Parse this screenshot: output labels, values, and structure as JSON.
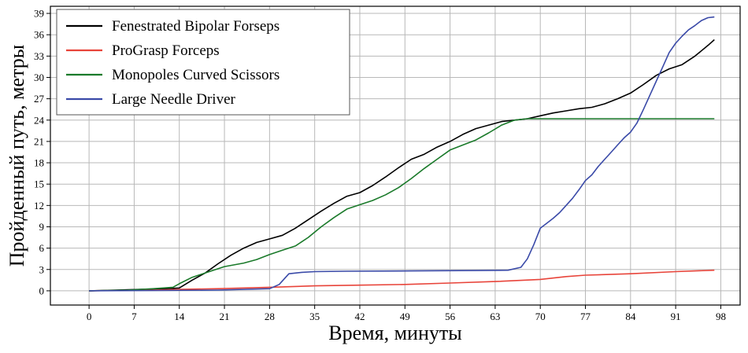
{
  "chart_data": {
    "type": "line",
    "xlabel": "Время, минуты",
    "ylabel": "Пройденный путь, метры",
    "xlim": [
      -6,
      101
    ],
    "ylim": [
      -2,
      40
    ],
    "xticks": [
      0,
      7,
      14,
      21,
      28,
      35,
      42,
      49,
      56,
      63,
      70,
      77,
      84,
      91,
      98
    ],
    "yticks": [
      0,
      3,
      6,
      9,
      12,
      15,
      18,
      21,
      24,
      27,
      30,
      33,
      36,
      39
    ],
    "grid": true,
    "legend_position": "top-left",
    "series": [
      {
        "name": "Fenestrated Bipolar Forseps",
        "color": "#000000",
        "x": [
          0,
          4,
          8,
          12,
          14,
          16,
          18,
          20,
          22,
          24,
          26,
          28,
          30,
          32,
          34,
          36,
          38,
          40,
          42,
          44,
          46,
          48,
          50,
          52,
          54,
          56,
          58,
          60,
          62,
          64,
          66,
          68,
          70,
          72,
          74,
          76,
          78,
          80,
          82,
          84,
          86,
          88,
          90,
          92,
          94,
          96,
          97
        ],
        "y": [
          0,
          0.1,
          0.2,
          0.3,
          0.4,
          1.5,
          2.5,
          3.8,
          5.0,
          6.0,
          6.8,
          7.3,
          7.8,
          8.8,
          10.0,
          11.2,
          12.3,
          13.3,
          13.8,
          14.8,
          16.0,
          17.3,
          18.5,
          19.2,
          20.2,
          21.0,
          22.0,
          22.8,
          23.3,
          23.8,
          24.0,
          24.2,
          24.6,
          25.0,
          25.3,
          25.6,
          25.8,
          26.3,
          27.0,
          27.8,
          29.0,
          30.3,
          31.2,
          31.8,
          33.0,
          34.5,
          35.3
        ]
      },
      {
        "name": "ProGrasp Forceps",
        "color": "#e8443a",
        "x": [
          0,
          10,
          14,
          20,
          28,
          35,
          42,
          49,
          56,
          63,
          70,
          74,
          77,
          84,
          91,
          97
        ],
        "y": [
          0,
          0.1,
          0.2,
          0.3,
          0.5,
          0.7,
          0.8,
          0.9,
          1.1,
          1.3,
          1.6,
          2.0,
          2.2,
          2.4,
          2.7,
          2.9
        ]
      },
      {
        "name": "Monopoles Curved Scissors",
        "color": "#1a7a2a",
        "x": [
          0,
          6,
          10,
          13,
          14,
          16,
          18,
          21,
          24,
          26,
          28,
          30,
          32,
          34,
          36,
          38,
          40,
          42,
          44,
          46,
          48,
          50,
          52,
          54,
          56,
          58,
          60,
          62,
          64,
          66,
          68,
          70,
          80,
          90,
          97
        ],
        "y": [
          0,
          0.1,
          0.3,
          0.5,
          1.0,
          1.9,
          2.5,
          3.4,
          3.9,
          4.4,
          5.1,
          5.7,
          6.3,
          7.5,
          9.0,
          10.3,
          11.5,
          12.1,
          12.7,
          13.5,
          14.5,
          15.8,
          17.2,
          18.5,
          19.8,
          20.5,
          21.2,
          22.2,
          23.3,
          24.0,
          24.2,
          24.2,
          24.2,
          24.2,
          24.2
        ]
      },
      {
        "name": "Large Needle Driver",
        "color": "#3a4aa8",
        "x": [
          0,
          10,
          20,
          28,
          29.5,
          31,
          33,
          35,
          40,
          50,
          60,
          65,
          67,
          68,
          69,
          70,
          71,
          72,
          73,
          74,
          75,
          76,
          77,
          78,
          79,
          80,
          81,
          82,
          83,
          84,
          85,
          86,
          87,
          88,
          89,
          90,
          91,
          92,
          93,
          94,
          95,
          96,
          97
        ],
        "y": [
          0,
          0.05,
          0.1,
          0.3,
          0.9,
          2.4,
          2.6,
          2.7,
          2.75,
          2.8,
          2.85,
          2.9,
          3.3,
          4.5,
          6.5,
          8.8,
          9.5,
          10.2,
          11.0,
          12.0,
          13.0,
          14.2,
          15.5,
          16.3,
          17.5,
          18.5,
          19.5,
          20.5,
          21.5,
          22.3,
          23.6,
          25.5,
          27.5,
          29.5,
          31.5,
          33.5,
          34.8,
          35.8,
          36.7,
          37.3,
          38.0,
          38.4,
          38.5
        ]
      }
    ]
  }
}
